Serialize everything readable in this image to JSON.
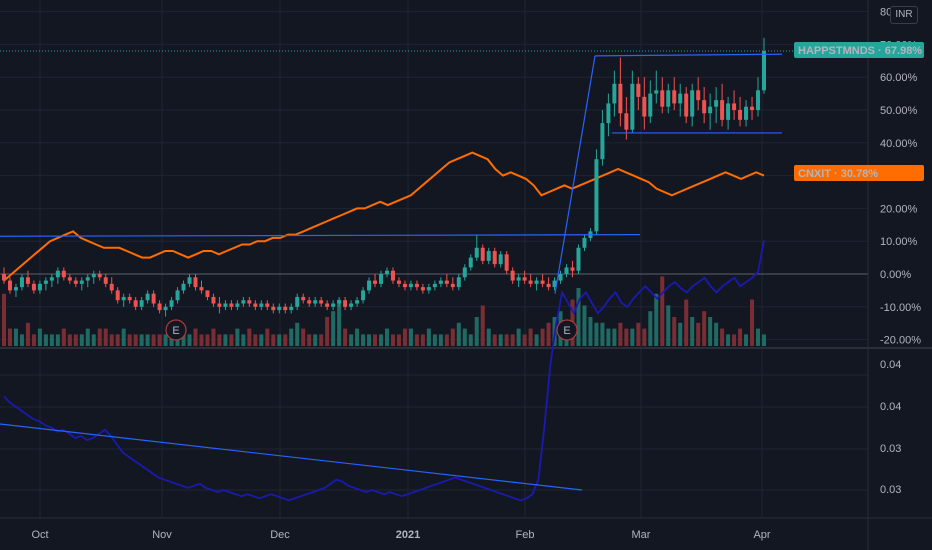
{
  "currency": "INR",
  "colors": {
    "background": "#131722",
    "grid": "#1f2433",
    "up": "#26a69a",
    "down": "#ef5350",
    "compare_line": "#ff6d00",
    "indicator_line": "#1a1ab0",
    "trendline": "#2962ff",
    "badge_happst": "#26a69a",
    "badge_cnxit": "#ff6d00"
  },
  "chart_data": [
    {
      "type": "candlestick",
      "symbol": "HAPPSTMNDS",
      "percent_scale": true,
      "y_ticks": [
        "80.00%",
        "70.00%",
        "60.00%",
        "50.00%",
        "40.00%",
        "30.00%",
        "20.00%",
        "10.00%",
        "0.00%",
        "-10.00%",
        "-20.00%"
      ],
      "ylim": [
        -20,
        80
      ],
      "last_value_label": "HAPPSTMNDS · 67.98%",
      "last_value": 67.98,
      "compare_series": {
        "name": "CNXIT",
        "label": "CNXIT · 30.78%",
        "last_value": 30.78,
        "values": [
          -2,
          0,
          2,
          4,
          6,
          8,
          10,
          11,
          12,
          13,
          11,
          10,
          9,
          8,
          8,
          8,
          7,
          6,
          5,
          5,
          6,
          7,
          7,
          6,
          5,
          6,
          7,
          7,
          6,
          7,
          8,
          9,
          9,
          10,
          10,
          11,
          11,
          12,
          12,
          13,
          14,
          15,
          16,
          17,
          18,
          19,
          20,
          20,
          21,
          22,
          21,
          22,
          23,
          24,
          26,
          28,
          30,
          32,
          34,
          35,
          36,
          37,
          36,
          35,
          32,
          30,
          31,
          30,
          29,
          27,
          24,
          25,
          26,
          27,
          26,
          27,
          28,
          29,
          30,
          31,
          32,
          31,
          30,
          29,
          28,
          26,
          25,
          24,
          25,
          26,
          27,
          28,
          29,
          30,
          31,
          30,
          29,
          30,
          31,
          30
        ]
      },
      "earnings_markers": [
        "E",
        "E"
      ],
      "volume": [
        9,
        3,
        3,
        2,
        4,
        2,
        3,
        2,
        2,
        2,
        3,
        2,
        2,
        2,
        3,
        2,
        3,
        3,
        2,
        2,
        3,
        2,
        2,
        2,
        2,
        2,
        2,
        2,
        3,
        2,
        3,
        2,
        3,
        2,
        2,
        3,
        2,
        2,
        2,
        3,
        2,
        3,
        2,
        2,
        3,
        2,
        2,
        2,
        3,
        4,
        3,
        2,
        2,
        2,
        5,
        6,
        8,
        3,
        2,
        3,
        2,
        2,
        2,
        2,
        3,
        2,
        2,
        3,
        3,
        2,
        2,
        3,
        2,
        2,
        2,
        3,
        4,
        3,
        2,
        5,
        7,
        3,
        2,
        2,
        2,
        2,
        3,
        2,
        3,
        2,
        3,
        4,
        5,
        6,
        4,
        8,
        10,
        7,
        5,
        4,
        4,
        3,
        3,
        4,
        3,
        3,
        4,
        3,
        6,
        9,
        12,
        7,
        5,
        4,
        8,
        5,
        4,
        6,
        5,
        4,
        3,
        2,
        2,
        3,
        2,
        8,
        3,
        2,
        2,
        3,
        2,
        2,
        4,
        3,
        10
      ]
    },
    {
      "type": "line",
      "name": "indicator",
      "y_ticks": [
        "0.04",
        "0.04",
        "0.03",
        "0.03"
      ],
      "ylim": [
        0.028,
        0.042
      ]
    }
  ],
  "x_axis": {
    "labels": [
      {
        "text": "Oct",
        "bold": false
      },
      {
        "text": "Nov",
        "bold": false
      },
      {
        "text": "Dec",
        "bold": false
      },
      {
        "text": "2021",
        "bold": true
      },
      {
        "text": "Feb",
        "bold": false
      },
      {
        "text": "Mar",
        "bold": false
      },
      {
        "text": "Apr",
        "bold": false
      }
    ]
  },
  "candles": [
    [
      0,
      2,
      -3,
      -2
    ],
    [
      -2,
      -1,
      -6,
      -5
    ],
    [
      -5,
      -3,
      -7,
      -4
    ],
    [
      -4,
      0,
      -5,
      -1
    ],
    [
      -1,
      1,
      -4,
      -3
    ],
    [
      -3,
      -2,
      -6,
      -5
    ],
    [
      -5,
      -2,
      -6,
      -3
    ],
    [
      -3,
      -1,
      -5,
      -2
    ],
    [
      -2,
      0,
      -4,
      -1
    ],
    [
      -1,
      2,
      -3,
      1
    ],
    [
      1,
      2,
      -2,
      -1
    ],
    [
      -1,
      0,
      -3,
      -2
    ],
    [
      -2,
      -1,
      -4,
      -3
    ],
    [
      -3,
      -1,
      -5,
      -2
    ],
    [
      -2,
      0,
      -4,
      -1
    ],
    [
      -1,
      1,
      -3,
      0
    ],
    [
      0,
      1,
      -2,
      -1
    ],
    [
      -1,
      0,
      -4,
      -3
    ],
    [
      -3,
      -1,
      -6,
      -5
    ],
    [
      -5,
      -4,
      -9,
      -8
    ],
    [
      -8,
      -6,
      -10,
      -7
    ],
    [
      -7,
      -6,
      -9,
      -8
    ],
    [
      -8,
      -7,
      -11,
      -10
    ],
    [
      -10,
      -7,
      -11,
      -8
    ],
    [
      -8,
      -5,
      -9,
      -6
    ],
    [
      -6,
      -5,
      -10,
      -9
    ],
    [
      -9,
      -8,
      -12,
      -11
    ],
    [
      -11,
      -9,
      -13,
      -10
    ],
    [
      -10,
      -7,
      -11,
      -8
    ],
    [
      -8,
      -4,
      -9,
      -5
    ],
    [
      -5,
      -2,
      -6,
      -3
    ],
    [
      -3,
      0,
      -4,
      -1
    ],
    [
      -1,
      0,
      -5,
      -4
    ],
    [
      -4,
      -2,
      -6,
      -5
    ],
    [
      -5,
      -5,
      -8,
      -7
    ],
    [
      -7,
      -6,
      -10,
      -9
    ],
    [
      -9,
      -7,
      -12,
      -10
    ],
    [
      -10,
      -8,
      -11,
      -9
    ],
    [
      -9,
      -8,
      -11,
      -10
    ],
    [
      -10,
      -8,
      -11,
      -9
    ],
    [
      -9,
      -7,
      -10,
      -8
    ],
    [
      -8,
      -7,
      -10,
      -9
    ],
    [
      -9,
      -8,
      -11,
      -10
    ],
    [
      -10,
      -8,
      -11,
      -9
    ],
    [
      -9,
      -8,
      -11,
      -10
    ],
    [
      -10,
      -9,
      -12,
      -11
    ],
    [
      -11,
      -9,
      -12,
      -10
    ],
    [
      -10,
      -9,
      -12,
      -11
    ],
    [
      -11,
      -9,
      -12,
      -10
    ],
    [
      -10,
      -6,
      -11,
      -7
    ],
    [
      -7,
      -6,
      -9,
      -8
    ],
    [
      -8,
      -7,
      -10,
      -9
    ],
    [
      -9,
      -7,
      -10,
      -8
    ],
    [
      -8,
      -7,
      -10,
      -9
    ],
    [
      -9,
      -8,
      -11,
      -10
    ],
    [
      -10,
      -8,
      -11,
      -9
    ],
    [
      -9,
      -7,
      -10,
      -8
    ],
    [
      -8,
      -7,
      -11,
      -10
    ],
    [
      -10,
      -8,
      -11,
      -9
    ],
    [
      -9,
      -7,
      -10,
      -8
    ],
    [
      -8,
      -4,
      -9,
      -5
    ],
    [
      -5,
      -1,
      -6,
      -2
    ],
    [
      -2,
      0,
      -4,
      -3
    ],
    [
      -3,
      1,
      -4,
      0
    ],
    [
      0,
      2,
      -1,
      1
    ],
    [
      1,
      2,
      -3,
      -2
    ],
    [
      -2,
      -1,
      -4,
      -3
    ],
    [
      -3,
      -2,
      -5,
      -4
    ],
    [
      -4,
      -2,
      -5,
      -3
    ],
    [
      -3,
      -2,
      -5,
      -4
    ],
    [
      -4,
      -3,
      -6,
      -5
    ],
    [
      -5,
      -3,
      -6,
      -4
    ],
    [
      -4,
      -2,
      -5,
      -3
    ],
    [
      -3,
      -1,
      -4,
      -2
    ],
    [
      -2,
      0,
      -4,
      -3
    ],
    [
      -3,
      -1,
      -5,
      -4
    ],
    [
      -4,
      0,
      -5,
      -1
    ],
    [
      -1,
      3,
      -2,
      2
    ],
    [
      2,
      6,
      1,
      5
    ],
    [
      5,
      12,
      4,
      8
    ],
    [
      8,
      9,
      3,
      4
    ],
    [
      4,
      8,
      3,
      7
    ],
    [
      7,
      8,
      2,
      3
    ],
    [
      3,
      7,
      2,
      6
    ],
    [
      6,
      7,
      0,
      1
    ],
    [
      1,
      2,
      -3,
      -2
    ],
    [
      -2,
      0,
      -4,
      -1
    ],
    [
      -1,
      1,
      -3,
      -2
    ],
    [
      -2,
      0,
      -4,
      -3
    ],
    [
      -3,
      -1,
      -5,
      -2
    ],
    [
      -2,
      0,
      -4,
      -3
    ],
    [
      -3,
      -1,
      -5,
      -4
    ],
    [
      -4,
      -1,
      -5,
      -2
    ],
    [
      -2,
      1,
      -3,
      0
    ],
    [
      0,
      3,
      -1,
      2
    ],
    [
      2,
      4,
      -1,
      1
    ],
    [
      1,
      9,
      0,
      8
    ],
    [
      8,
      12,
      7,
      11
    ],
    [
      11,
      14,
      10,
      13
    ],
    [
      13,
      38,
      12,
      35
    ],
    [
      35,
      50,
      33,
      46
    ],
    [
      46,
      55,
      42,
      52
    ],
    [
      52,
      62,
      48,
      58
    ],
    [
      58,
      66,
      45,
      49
    ],
    [
      49,
      54,
      41,
      44
    ],
    [
      44,
      62,
      43,
      58
    ],
    [
      58,
      60,
      50,
      54
    ],
    [
      54,
      60,
      44,
      48
    ],
    [
      48,
      59,
      46,
      55
    ],
    [
      55,
      62,
      52,
      56
    ],
    [
      56,
      60,
      49,
      51
    ],
    [
      51,
      58,
      49,
      56
    ],
    [
      56,
      60,
      50,
      52
    ],
    [
      52,
      58,
      48,
      55
    ],
    [
      55,
      57,
      46,
      48
    ],
    [
      48,
      58,
      45,
      56
    ],
    [
      56,
      60,
      50,
      53
    ],
    [
      53,
      57,
      46,
      49
    ],
    [
      49,
      55,
      44,
      51
    ],
    [
      51,
      57,
      46,
      53
    ],
    [
      53,
      58,
      45,
      47
    ],
    [
      47,
      54,
      44,
      52
    ],
    [
      52,
      56,
      47,
      50
    ],
    [
      50,
      54,
      45,
      47
    ],
    [
      47,
      53,
      45,
      51
    ],
    [
      51,
      54,
      47,
      50
    ],
    [
      50,
      60,
      48,
      56
    ],
    [
      56,
      72,
      55,
      68
    ]
  ],
  "indicator_values": [
    0.0345,
    0.0342,
    0.034,
    0.0338,
    0.0336,
    0.0334,
    0.0333,
    0.0331,
    0.033,
    0.0328,
    0.0329,
    0.0327,
    0.0325,
    0.0326,
    0.0324,
    0.0325,
    0.0327,
    0.0329,
    0.0326,
    0.0322,
    0.0318,
    0.0316,
    0.0314,
    0.0312,
    0.031,
    0.0308,
    0.0306,
    0.0305,
    0.0304,
    0.0303,
    0.0302,
    0.0301,
    0.0302,
    0.0303,
    0.0301,
    0.03,
    0.0299,
    0.03,
    0.0299,
    0.0298,
    0.0297,
    0.0298,
    0.0297,
    0.0296,
    0.0297,
    0.0298,
    0.0297,
    0.0296,
    0.0295,
    0.0296,
    0.0297,
    0.0298,
    0.0299,
    0.03,
    0.0301,
    0.0303,
    0.0305,
    0.0304,
    0.0302,
    0.0301,
    0.03,
    0.0299,
    0.03,
    0.0299,
    0.0298,
    0.0299,
    0.0298,
    0.0297,
    0.0298,
    0.0299,
    0.03,
    0.0301,
    0.0302,
    0.0303,
    0.0304,
    0.0305,
    0.0306,
    0.0305,
    0.0304,
    0.0303,
    0.0302,
    0.0301,
    0.03,
    0.0299,
    0.0298,
    0.0297,
    0.0296,
    0.0295,
    0.0296,
    0.0298,
    0.0305,
    0.033,
    0.036,
    0.038,
    0.0395,
    0.039,
    0.0385,
    0.0392,
    0.0395,
    0.039,
    0.0385,
    0.0388,
    0.0392,
    0.0395,
    0.039,
    0.0388,
    0.0392,
    0.0395,
    0.0398,
    0.0395,
    0.0392,
    0.0395,
    0.0398,
    0.04,
    0.0397,
    0.0395,
    0.0398,
    0.04,
    0.0402,
    0.0398,
    0.0395,
    0.0398,
    0.04,
    0.0402,
    0.0398,
    0.04,
    0.0402,
    0.0405,
    0.042
  ]
}
